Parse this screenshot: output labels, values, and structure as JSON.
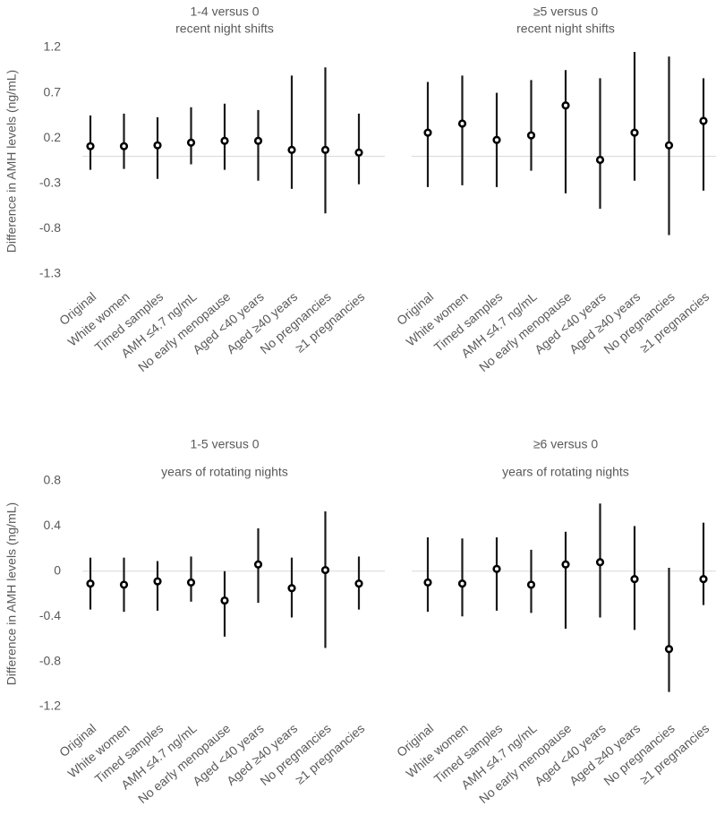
{
  "chart_data": [
    {
      "type": "errorbar",
      "title": [
        "1-4 versus 0",
        "recent night shifts"
      ],
      "ylabel": "Difference in AMH levels (ng/mL)",
      "ylim": [
        -1.3,
        1.2
      ],
      "yticks": [
        "1.2",
        "0.7",
        "0.2",
        "-0.3",
        "-0.8",
        "-1.3"
      ],
      "categories": [
        "Original",
        "White women",
        "Timed samples",
        "AMH ≤4.7 ng/mL",
        "No early menopause",
        "Aged <40 years",
        "Aged ≥40 years",
        "No pregnancies",
        "≥1 pregnancies"
      ],
      "estimate": [
        0.11,
        0.11,
        0.12,
        0.15,
        0.17,
        0.17,
        0.07,
        0.07,
        0.04
      ],
      "lower": [
        -0.15,
        -0.14,
        -0.25,
        -0.09,
        -0.15,
        -0.27,
        -0.36,
        -0.63,
        -0.31
      ],
      "upper": [
        0.45,
        0.47,
        0.43,
        0.54,
        0.58,
        0.51,
        0.89,
        0.98,
        0.47
      ],
      "colors": {
        "marker": "#000000",
        "line": "#1a1a1a",
        "zero": "#d9d9d9",
        "text": "#595959"
      }
    },
    {
      "type": "errorbar",
      "title": [
        "≥5 versus 0",
        "recent night shifts"
      ],
      "ylim": [
        -1.3,
        1.2
      ],
      "categories": [
        "Original",
        "White women",
        "Timed samples",
        "AMH ≤4.7 ng/mL",
        "No early menopause",
        "Aged <40 years",
        "Aged ≥40 years",
        "No pregnancies",
        "≥1 pregnancies"
      ],
      "estimate": [
        0.26,
        0.36,
        0.18,
        0.23,
        0.56,
        -0.04,
        0.26,
        0.12,
        0.39
      ],
      "lower": [
        -0.34,
        -0.32,
        -0.34,
        -0.16,
        -0.41,
        -0.58,
        -0.27,
        -0.87,
        -0.38
      ],
      "upper": [
        0.82,
        0.89,
        0.7,
        0.84,
        0.95,
        0.86,
        1.15,
        1.1,
        0.86
      ],
      "colors": {
        "marker": "#000000",
        "line": "#1a1a1a",
        "zero": "#d9d9d9",
        "text": "#595959"
      }
    },
    {
      "type": "errorbar",
      "title": [
        "1-5 versus 0",
        "years of rotating nights"
      ],
      "ylabel": "Difference in AMH levels (ng/mL)",
      "ylim": [
        -1.2,
        0.8
      ],
      "yticks": [
        "0.8",
        "0.4",
        "0",
        "-0.4",
        "-0.8",
        "-1.2"
      ],
      "categories": [
        "Original",
        "White women",
        "Timed samples",
        "AMH ≤4.7 ng/mL",
        "No early menopause",
        "Aged <40 years",
        "Aged ≥40 years",
        "No pregnancies",
        "≥1 pregnancies"
      ],
      "estimate": [
        -0.11,
        -0.12,
        -0.09,
        -0.1,
        -0.26,
        0.06,
        -0.15,
        0.01,
        -0.11
      ],
      "lower": [
        -0.34,
        -0.36,
        -0.35,
        -0.27,
        -0.58,
        -0.28,
        -0.41,
        -0.68,
        -0.34
      ],
      "upper": [
        0.12,
        0.12,
        0.09,
        0.13,
        0.0,
        0.38,
        0.12,
        0.53,
        0.13
      ],
      "colors": {
        "marker": "#000000",
        "line": "#1a1a1a",
        "zero": "#d9d9d9",
        "text": "#595959"
      }
    },
    {
      "type": "errorbar",
      "title": [
        "≥6 versus 0",
        "years of rotating nights"
      ],
      "ylim": [
        -1.2,
        0.8
      ],
      "categories": [
        "Original",
        "White women",
        "Timed samples",
        "AMH ≤4.7 ng/mL",
        "No early menopause",
        "Aged <40 years",
        "Aged ≥40 years",
        "No pregnancies",
        "≥1 pregnancies"
      ],
      "estimate": [
        -0.1,
        -0.11,
        0.02,
        -0.12,
        0.06,
        0.08,
        -0.07,
        -0.69,
        -0.07
      ],
      "lower": [
        -0.36,
        -0.4,
        -0.35,
        -0.37,
        -0.51,
        -0.41,
        -0.52,
        -1.07,
        -0.3
      ],
      "upper": [
        0.3,
        0.29,
        0.3,
        0.19,
        0.35,
        0.6,
        0.4,
        0.03,
        0.43
      ],
      "colors": {
        "marker": "#000000",
        "line": "#1a1a1a",
        "zero": "#d9d9d9",
        "text": "#595959"
      }
    }
  ]
}
